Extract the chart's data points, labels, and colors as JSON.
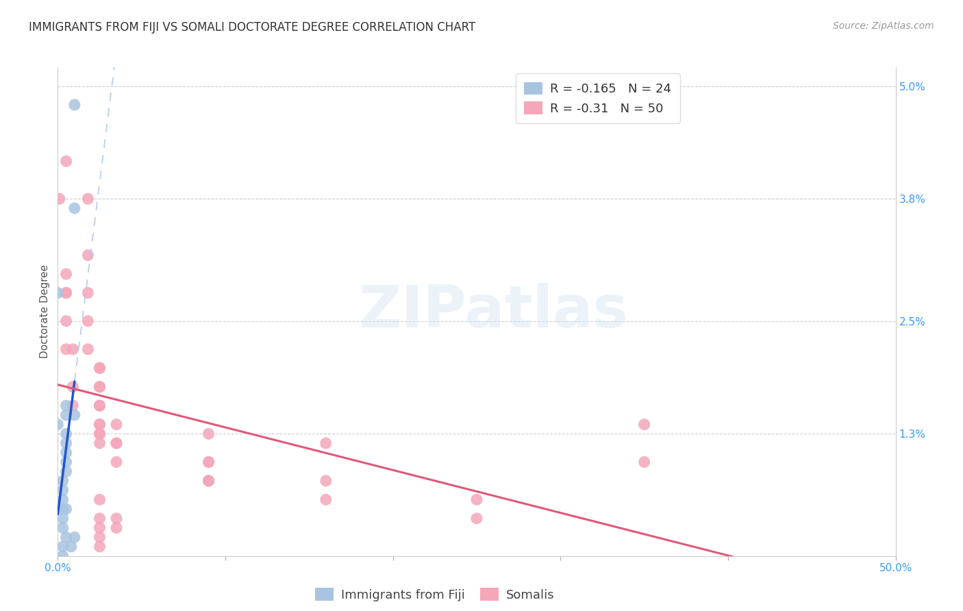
{
  "title": "IMMIGRANTS FROM FIJI VS SOMALI DOCTORATE DEGREE CORRELATION CHART",
  "source": "Source: ZipAtlas.com",
  "ylabel": "Doctorate Degree",
  "xlim": [
    0.0,
    0.5
  ],
  "ylim": [
    0.0,
    0.052
  ],
  "xtick_vals": [
    0.0,
    0.1,
    0.2,
    0.3,
    0.4,
    0.5
  ],
  "xticklabels": [
    "0.0%",
    "",
    "",
    "",
    "",
    "50.0%"
  ],
  "ytick_vals": [
    0.0,
    0.013,
    0.025,
    0.038,
    0.05
  ],
  "yticklabels": [
    "",
    "1.3%",
    "2.5%",
    "3.8%",
    "5.0%"
  ],
  "fiji_color": "#a8c4e0",
  "somali_color": "#f4a7b9",
  "fiji_R": -0.165,
  "fiji_N": 24,
  "somali_R": -0.31,
  "somali_N": 50,
  "fiji_line_color": "#2255cc",
  "somali_line_color": "#e05878",
  "fiji_dashed_color": "#aac8e8",
  "background_color": "#ffffff",
  "grid_color": "#cccccc",
  "legend_fiji_label": "Immigrants from Fiji",
  "legend_somali_label": "Somalis",
  "fiji_x": [
    0.01,
    0.01,
    0.0,
    0.01,
    0.0,
    0.005,
    0.005,
    0.005,
    0.005,
    0.005,
    0.005,
    0.005,
    0.003,
    0.003,
    0.003,
    0.005,
    0.003,
    0.003,
    0.003,
    0.005,
    0.01,
    0.008,
    0.003,
    0.003
  ],
  "fiji_y": [
    0.048,
    0.037,
    0.028,
    0.015,
    0.014,
    0.016,
    0.015,
    0.013,
    0.012,
    0.011,
    0.01,
    0.009,
    0.008,
    0.007,
    0.006,
    0.005,
    0.005,
    0.004,
    0.003,
    0.002,
    0.002,
    0.001,
    0.001,
    0.0
  ],
  "somali_x": [
    0.001,
    0.005,
    0.018,
    0.018,
    0.005,
    0.005,
    0.018,
    0.005,
    0.018,
    0.005,
    0.018,
    0.005,
    0.009,
    0.025,
    0.025,
    0.009,
    0.025,
    0.025,
    0.009,
    0.025,
    0.025,
    0.025,
    0.025,
    0.025,
    0.035,
    0.025,
    0.09,
    0.025,
    0.035,
    0.035,
    0.16,
    0.035,
    0.09,
    0.09,
    0.09,
    0.09,
    0.09,
    0.16,
    0.16,
    0.25,
    0.25,
    0.35,
    0.35,
    0.025,
    0.035,
    0.025,
    0.035,
    0.025,
    0.025,
    0.025
  ],
  "somali_y": [
    0.038,
    0.042,
    0.038,
    0.032,
    0.03,
    0.028,
    0.028,
    0.028,
    0.025,
    0.025,
    0.022,
    0.022,
    0.022,
    0.02,
    0.02,
    0.018,
    0.018,
    0.018,
    0.016,
    0.016,
    0.016,
    0.014,
    0.014,
    0.013,
    0.014,
    0.013,
    0.013,
    0.012,
    0.012,
    0.012,
    0.012,
    0.01,
    0.01,
    0.01,
    0.008,
    0.008,
    0.008,
    0.008,
    0.006,
    0.006,
    0.004,
    0.014,
    0.01,
    0.006,
    0.004,
    0.004,
    0.003,
    0.003,
    0.002,
    0.001
  ],
  "watermark_text": "ZIPatlas",
  "title_fontsize": 12,
  "axis_label_fontsize": 11,
  "tick_fontsize": 11,
  "legend_fontsize": 13,
  "source_fontsize": 10,
  "fiji_line_xrange": [
    0.0,
    0.01
  ],
  "fiji_dash_xrange": [
    0.01,
    0.3
  ],
  "somali_line_xrange": [
    0.0,
    0.5
  ]
}
